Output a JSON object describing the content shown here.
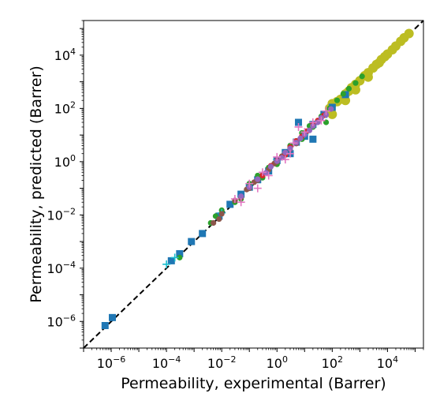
{
  "chart_data": {
    "type": "scatter",
    "xlabel": "Permeability, experimental (Barrer)",
    "ylabel": "Permeability, predicted (Barrer)",
    "xscale": "log",
    "yscale": "log",
    "xlim": [
      1e-07,
      200000.0
    ],
    "ylim": [
      1e-07,
      200000.0
    ],
    "tick_base": "10",
    "x_tick_exponents": [
      "-6",
      "-4",
      "-2",
      "0",
      "2",
      "4"
    ],
    "y_tick_exponents": [
      "-6",
      "-4",
      "-2",
      "0",
      "2",
      "4"
    ],
    "grid": false,
    "legend": "none",
    "reference_line": {
      "style": "dashed",
      "color": "#000000",
      "x": [
        1e-07,
        200000.0
      ],
      "y": [
        1e-07,
        200000.0
      ]
    },
    "series": [
      {
        "color": "#1f77b4",
        "marker": "square",
        "points": [
          [
            6e-07,
            7e-07
          ],
          [
            1.1e-06,
            1.4e-06
          ],
          [
            0.00015,
            0.00019
          ],
          [
            0.0003,
            0.00035
          ],
          [
            0.0008,
            0.001
          ],
          [
            0.002,
            0.002
          ],
          [
            0.008,
            0.009
          ],
          [
            0.02,
            0.025
          ],
          [
            0.05,
            0.06
          ],
          [
            0.1,
            0.11
          ],
          [
            0.2,
            0.21
          ],
          [
            0.5,
            0.45
          ],
          [
            1,
            1.1
          ],
          [
            2,
            2.2
          ],
          [
            5,
            5.4
          ],
          [
            6,
            30
          ],
          [
            10,
            9
          ],
          [
            20,
            25
          ],
          [
            50,
            60
          ],
          [
            100,
            110
          ],
          [
            300,
            330
          ],
          [
            20,
            7
          ],
          [
            3,
            2
          ]
        ]
      },
      {
        "color": "#2ca02c",
        "marker": "circle",
        "points": [
          [
            0.0003,
            0.00025
          ],
          [
            0.004,
            0.005
          ],
          [
            0.006,
            0.009
          ],
          [
            0.01,
            0.015
          ],
          [
            0.03,
            0.03
          ],
          [
            0.05,
            0.04
          ],
          [
            0.1,
            0.15
          ],
          [
            0.2,
            0.3
          ],
          [
            0.3,
            0.25
          ],
          [
            0.5,
            0.6
          ],
          [
            1,
            0.8
          ],
          [
            2,
            1.8
          ],
          [
            3,
            4
          ],
          [
            5,
            6
          ],
          [
            8,
            7
          ],
          [
            10,
            12
          ],
          [
            20,
            20
          ],
          [
            40,
            50
          ],
          [
            80,
            100
          ],
          [
            150,
            200
          ],
          [
            250,
            350
          ],
          [
            400,
            550
          ],
          [
            700,
            900
          ],
          [
            1200,
            1600
          ],
          [
            60,
            30
          ],
          [
            8,
            12
          ],
          [
            15,
            22
          ]
        ]
      },
      {
        "color": "#17becf",
        "marker": "plus",
        "points": [
          [
            0.0001,
            0.00014
          ],
          [
            0.0002,
            0.00025
          ],
          [
            0.01,
            0.012
          ],
          [
            1,
            1.2
          ],
          [
            10,
            11
          ]
        ]
      },
      {
        "color": "#d62728",
        "marker": "circle",
        "points": [
          [
            0.3,
            0.3
          ],
          [
            0.6,
            0.7
          ],
          [
            1,
            1.1
          ],
          [
            2,
            1.8
          ],
          [
            3,
            3.5
          ],
          [
            5,
            6
          ],
          [
            8,
            9
          ],
          [
            12,
            14
          ],
          [
            20,
            24
          ],
          [
            30,
            35
          ],
          [
            50,
            55
          ]
        ]
      },
      {
        "color": "#8c564b",
        "marker": "circle",
        "points": [
          [
            0.005,
            0.005
          ],
          [
            0.008,
            0.007
          ],
          [
            0.01,
            0.011
          ],
          [
            0.03,
            0.035
          ],
          [
            0.05,
            0.045
          ],
          [
            0.08,
            0.09
          ],
          [
            0.1,
            0.1
          ],
          [
            0.15,
            0.17
          ],
          [
            0.2,
            0.2
          ],
          [
            0.3,
            0.32
          ],
          [
            0.5,
            0.5
          ],
          [
            0.8,
            0.85
          ],
          [
            1,
            1
          ],
          [
            1.5,
            1.6
          ],
          [
            2,
            2.1
          ],
          [
            3,
            3
          ],
          [
            5,
            4.8
          ]
        ]
      },
      {
        "color": "#9467bd",
        "marker": "circle",
        "points": [
          [
            0.05,
            0.05
          ],
          [
            0.1,
            0.11
          ],
          [
            0.2,
            0.22
          ],
          [
            0.4,
            0.38
          ],
          [
            0.6,
            0.65
          ],
          [
            1,
            1.05
          ],
          [
            1.5,
            1.4
          ],
          [
            2,
            2.2
          ],
          [
            3,
            3.1
          ],
          [
            5,
            5.2
          ],
          [
            7,
            7.5
          ],
          [
            10,
            10.5
          ],
          [
            15,
            15
          ],
          [
            20,
            22
          ],
          [
            30,
            30
          ],
          [
            40,
            44
          ],
          [
            60,
            58
          ],
          [
            90,
            95
          ]
        ]
      },
      {
        "color": "#e377c2",
        "marker": "plus",
        "points": [
          [
            0.03,
            0.04
          ],
          [
            0.05,
            0.03
          ],
          [
            0.1,
            0.15
          ],
          [
            0.2,
            0.1
          ],
          [
            0.3,
            0.4
          ],
          [
            0.5,
            0.3
          ],
          [
            1,
            1.5
          ],
          [
            2,
            1.2
          ],
          [
            4,
            5
          ],
          [
            6,
            20
          ],
          [
            10,
            13
          ],
          [
            20,
            30
          ],
          [
            40,
            35
          ],
          [
            60,
            80
          ],
          [
            3,
            2
          ]
        ]
      },
      {
        "color": "#bcbd22",
        "marker": "circle",
        "points": [
          [
            80,
            100
          ],
          [
            100,
            150
          ],
          [
            150,
            180
          ],
          [
            200,
            220
          ],
          [
            300,
            350
          ],
          [
            400,
            450
          ],
          [
            500,
            600
          ],
          [
            700,
            800
          ],
          [
            1000,
            1100
          ],
          [
            1500,
            1700
          ],
          [
            2000,
            2200
          ],
          [
            3000,
            3300
          ],
          [
            4000,
            4500
          ],
          [
            5000,
            5200
          ],
          [
            6000,
            6800
          ],
          [
            8000,
            8800
          ],
          [
            10000,
            11000
          ],
          [
            15000,
            16000
          ],
          [
            20000,
            22000
          ],
          [
            30000,
            33000
          ],
          [
            40000,
            45000
          ],
          [
            60000,
            65000
          ],
          [
            100,
            60
          ],
          [
            300,
            200
          ],
          [
            700,
            500
          ],
          [
            2000,
            1500
          ]
        ]
      }
    ]
  }
}
